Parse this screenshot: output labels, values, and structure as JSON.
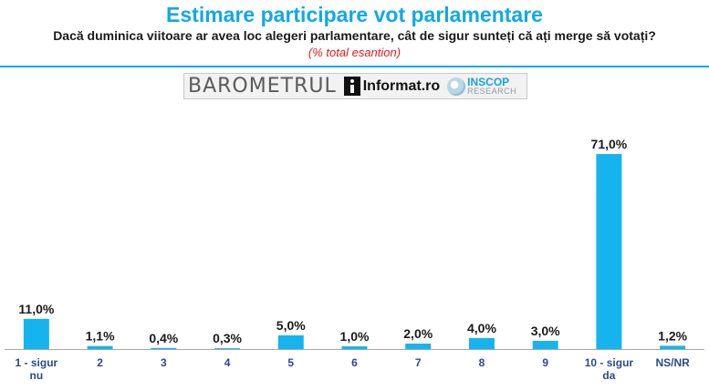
{
  "header": {
    "title": "Estimare participare vot parlamentare",
    "subtitle": "Dacă duminica viitoare ar avea loc alegeri parlamentare, cât de sigur sunteți că ați merge să votați?",
    "note": "(% total esantion)"
  },
  "logos": {
    "barometrul": "BAROMETRUL",
    "informat": "Informat.ro",
    "inscop": "INSCOP",
    "inscop_sub": "RESEARCH"
  },
  "colors": {
    "bar": "#16b4ee",
    "title": "#12a8e6",
    "note": "#e31b1b",
    "category_label": "#2b4a8c"
  },
  "chart_data": {
    "type": "bar",
    "categories": [
      [
        "1 - sigur",
        "nu"
      ],
      [
        "2"
      ],
      [
        "3"
      ],
      [
        "4"
      ],
      [
        "5"
      ],
      [
        "6"
      ],
      [
        "7"
      ],
      [
        "8"
      ],
      [
        "9"
      ],
      [
        "10 - sigur",
        "da"
      ],
      [
        "NS/NR"
      ]
    ],
    "values": [
      11.0,
      1.1,
      0.4,
      0.3,
      5.0,
      1.0,
      2.0,
      4.0,
      3.0,
      71.0,
      1.2
    ],
    "value_labels": [
      "11,0%",
      "1,1%",
      "0,4%",
      "0,3%",
      "5,0%",
      "1,0%",
      "2,0%",
      "4,0%",
      "3,0%",
      "71,0%",
      "1,2%"
    ],
    "title": "Estimare participare vot parlamentare",
    "xlabel": "",
    "ylabel": "",
    "ylim": [
      0,
      71
    ],
    "grid": false,
    "legend": "none"
  }
}
